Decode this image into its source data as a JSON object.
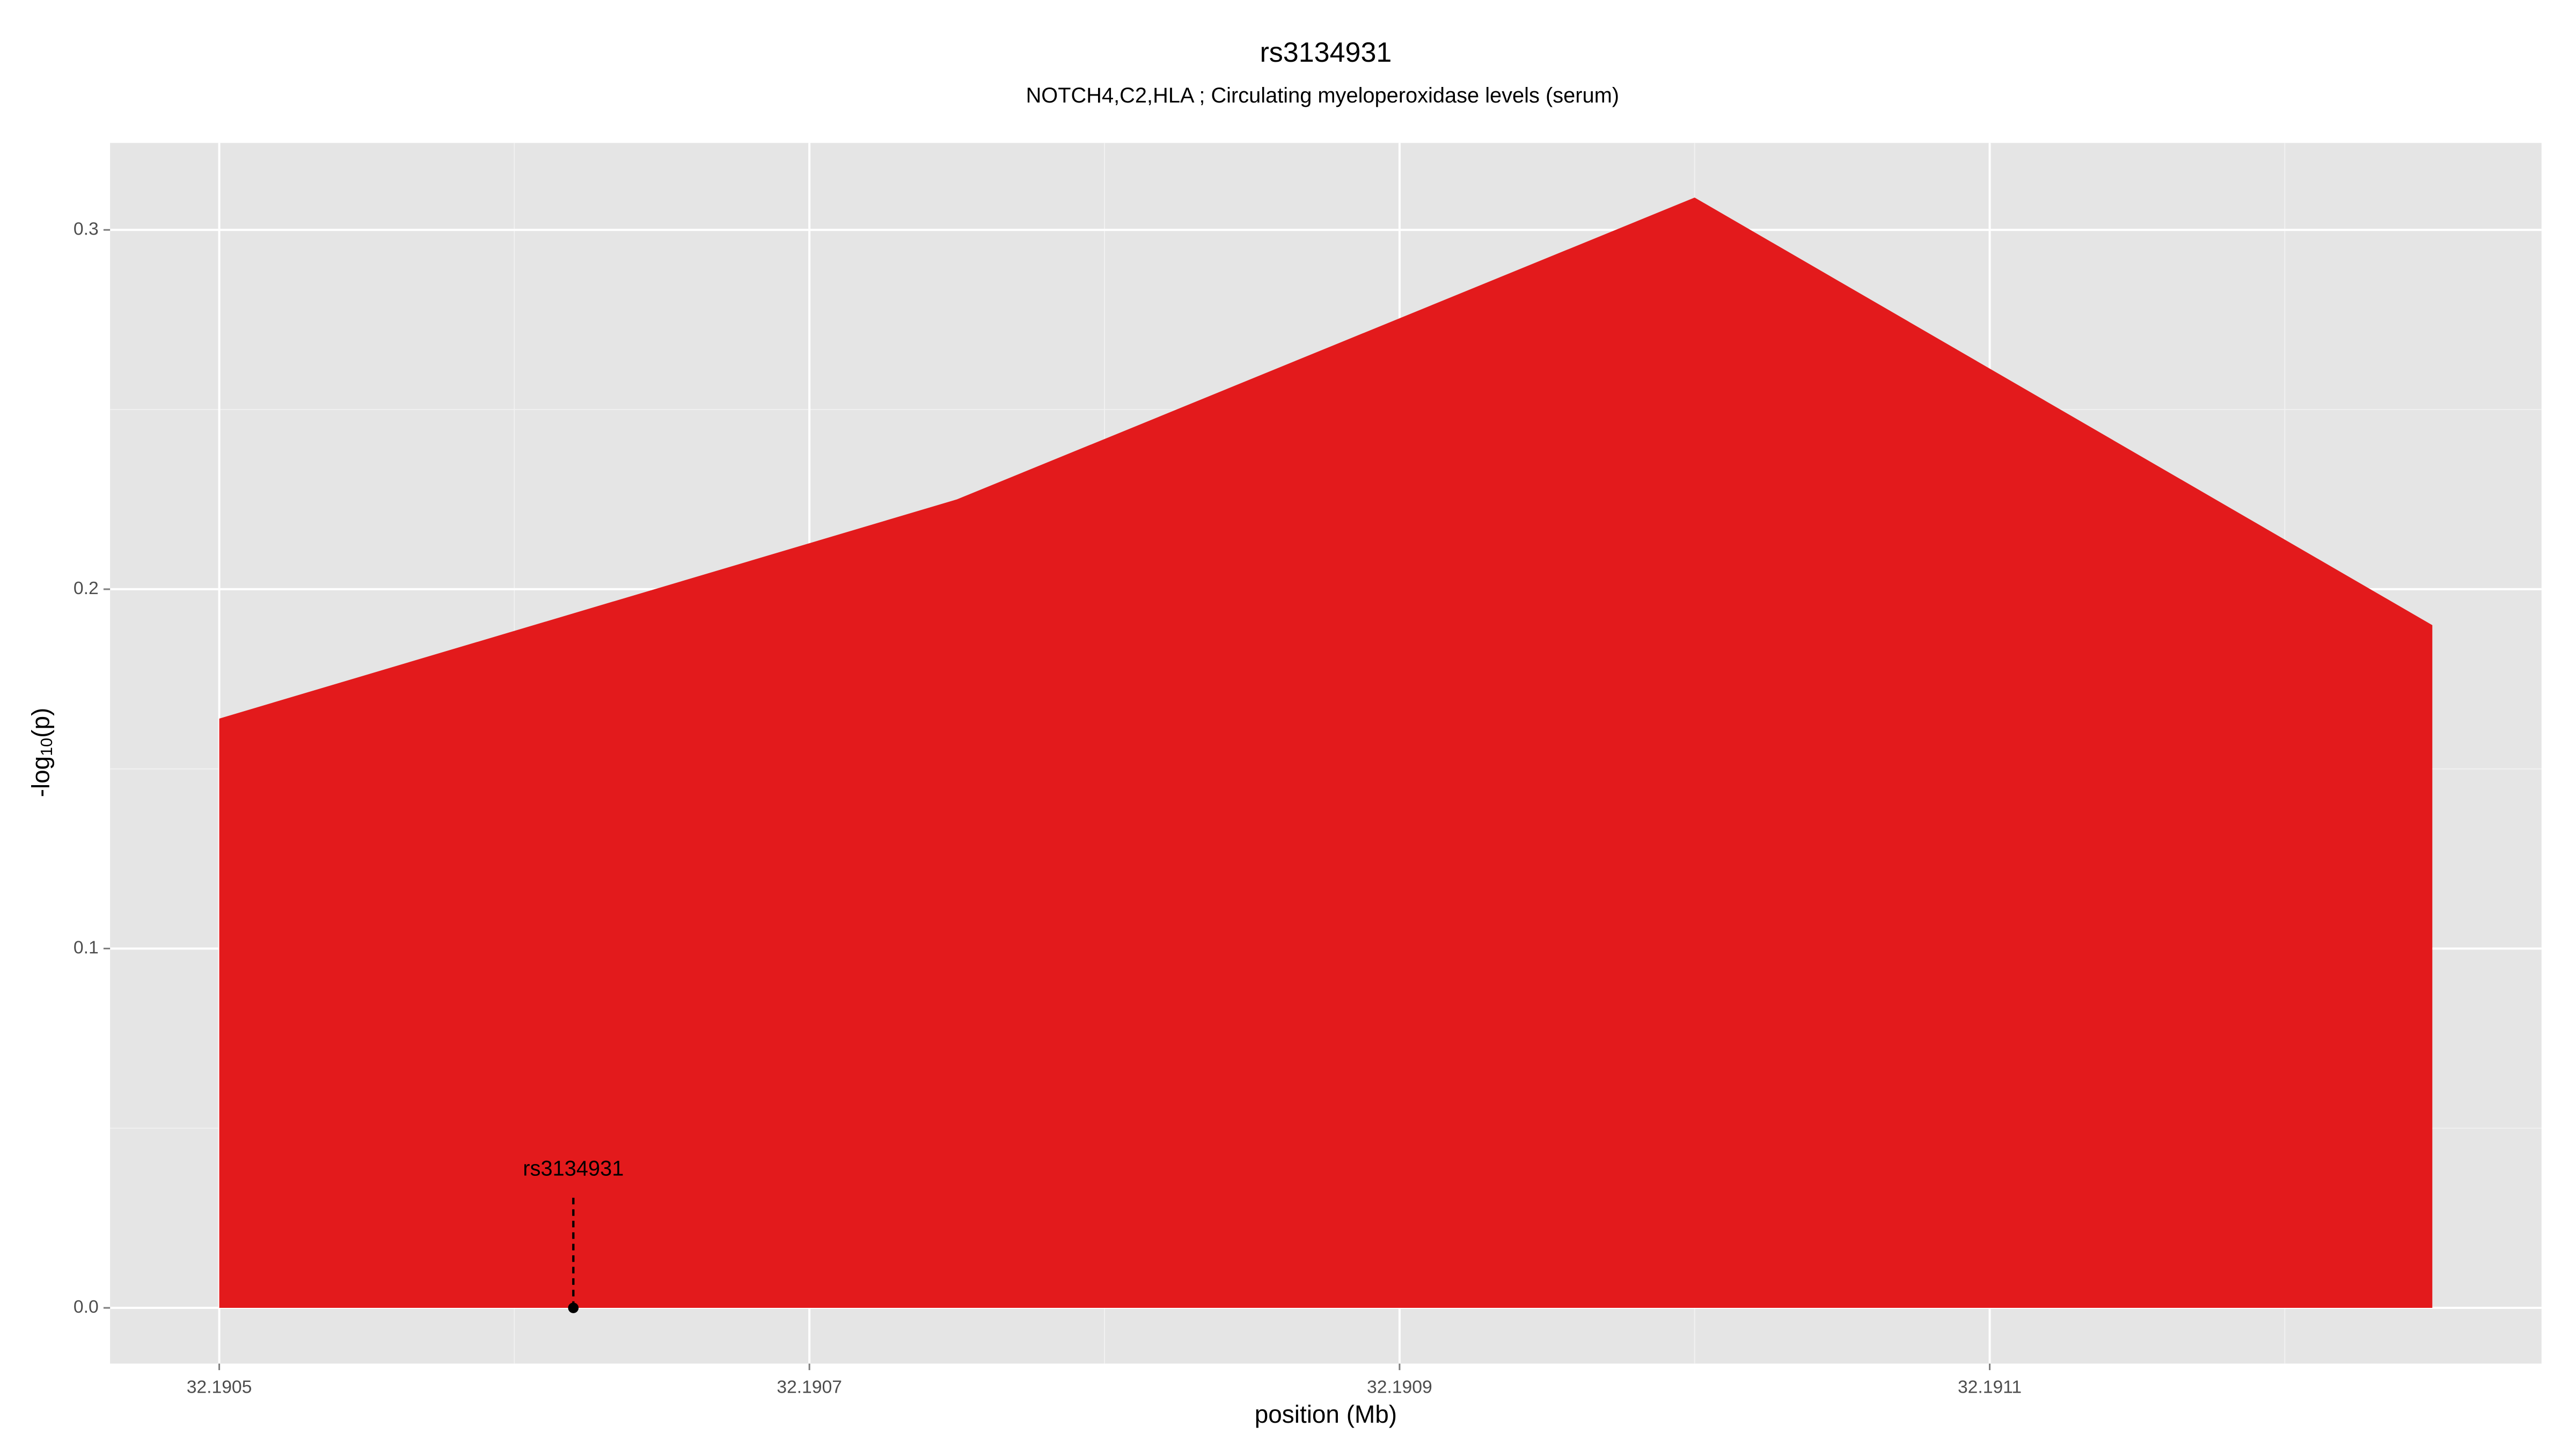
{
  "chart_data": {
    "type": "area",
    "title": "rs3134931",
    "subtitle": "NOTCH4,C2,HLA ; Circulating myeloperoxidase levels (serum)",
    "x_label": "position (Mb)",
    "y_label_parts": [
      "-log",
      "10",
      "(p)"
    ],
    "x": [
      32.1905,
      32.19075,
      32.191,
      32.19125
    ],
    "values": [
      0.164,
      0.225,
      0.309,
      0.19
    ],
    "color": "#e31a1c",
    "xlim": [
      32.190463,
      32.191287
    ],
    "ylim": [
      -0.0155,
      0.3242
    ],
    "xticks": [
      32.1905,
      32.1907,
      32.1909,
      32.1911
    ],
    "yticks": [
      {
        "value": 0,
        "label": "0.0"
      },
      0.1,
      0.2,
      0.3
    ],
    "grid": true,
    "annotation": {
      "label": "rs3134931",
      "x": 32.19062,
      "y": 0
    }
  }
}
